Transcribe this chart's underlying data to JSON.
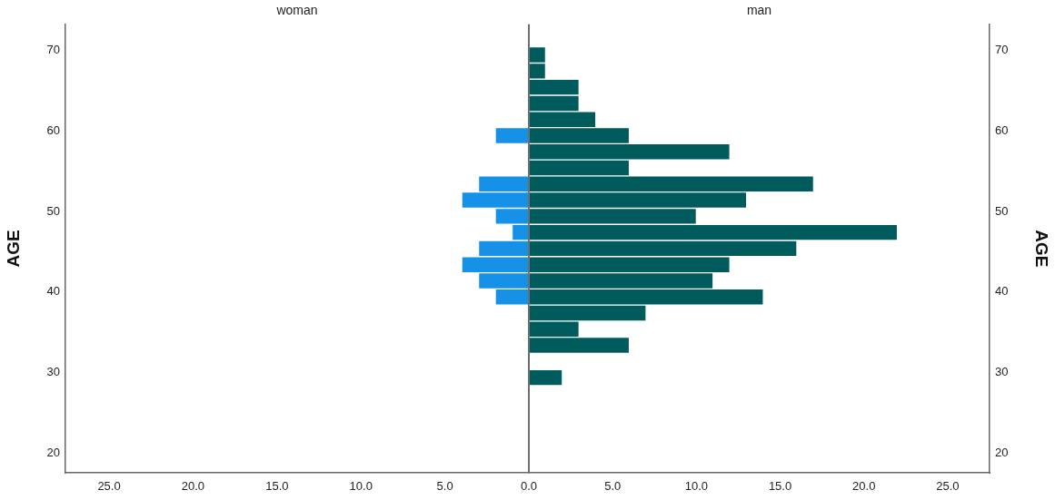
{
  "chart_data": [
    {
      "type": "histogram",
      "title": "woman",
      "orientation": "horizontal",
      "ylabel": "AGE",
      "grid": false,
      "color": "#1591e8",
      "bins": [
        28.4,
        30.4,
        32.4,
        34.4,
        36.4,
        38.4,
        40.4,
        42.4,
        44.4,
        46.4,
        48.4,
        50.4,
        52.4,
        54.4,
        56.4,
        58.4,
        60.4,
        62.4,
        64.4,
        66.4,
        68.4,
        70.4
      ],
      "values": [
        0,
        0,
        0,
        0,
        0,
        2,
        3,
        4,
        3,
        1,
        2,
        4,
        3,
        0,
        0,
        2,
        0,
        0,
        0,
        0,
        0
      ],
      "xlim": [
        27.6,
        0
      ],
      "xticks": [
        {
          "value": 25,
          "label": "25.0"
        },
        {
          "value": 20,
          "label": "20.0"
        },
        {
          "value": 15,
          "label": "15.0"
        },
        {
          "value": 10,
          "label": "10.0"
        },
        {
          "value": 5,
          "label": "5.0"
        },
        {
          "value": 0,
          "label": "0.0"
        }
      ],
      "ylim": [
        17.6,
        73.2
      ],
      "yticks": [
        20,
        30,
        40,
        50,
        60,
        70
      ]
    },
    {
      "type": "histogram",
      "title": "man",
      "orientation": "horizontal",
      "ylabel": "AGE",
      "grid": false,
      "color": "#005c5c",
      "bins": [
        28.4,
        30.4,
        32.4,
        34.4,
        36.4,
        38.4,
        40.4,
        42.4,
        44.4,
        46.4,
        48.4,
        50.4,
        52.4,
        54.4,
        56.4,
        58.4,
        60.4,
        62.4,
        64.4,
        66.4,
        68.4,
        70.4
      ],
      "values": [
        2,
        0,
        6,
        3,
        7,
        14,
        11,
        12,
        16,
        22,
        10,
        13,
        17,
        6,
        12,
        6,
        4,
        3,
        3,
        1,
        1
      ],
      "xlim": [
        0,
        27.5
      ],
      "xticks": [
        {
          "value": 0,
          "label": null
        },
        {
          "value": 5,
          "label": "5.0"
        },
        {
          "value": 10,
          "label": "10.0"
        },
        {
          "value": 15,
          "label": "15.0"
        },
        {
          "value": 20,
          "label": "20.0"
        },
        {
          "value": 25,
          "label": "25.0"
        }
      ],
      "ylim": [
        17.6,
        73.2
      ],
      "yticks": [
        20,
        30,
        40,
        50,
        60,
        70
      ]
    }
  ]
}
